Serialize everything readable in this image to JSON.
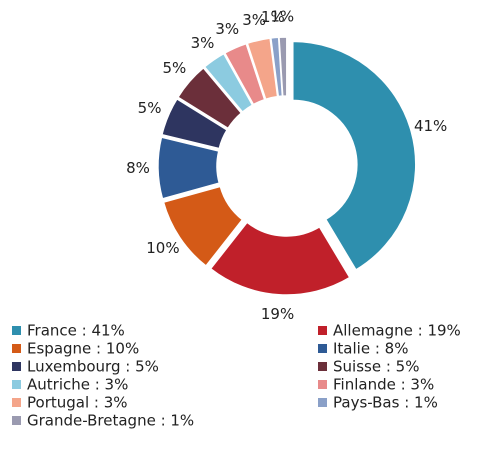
{
  "chart_data": {
    "type": "donut",
    "categories": [
      "France",
      "Allemagne",
      "Espagne",
      "Italie",
      "Luxembourg",
      "Suisse",
      "Autriche",
      "Finlande",
      "Portugal",
      "Pays-Bas",
      "Grande-Bretagne"
    ],
    "values": [
      41,
      19,
      10,
      8,
      5,
      5,
      3,
      3,
      3,
      1,
      1
    ],
    "value_labels": [
      "41%",
      "19%",
      "10%",
      "8%",
      "5%",
      "5%",
      "3%",
      "3%",
      "3%",
      "1%",
      "1%"
    ],
    "legend": [
      "France : 41%",
      "Allemagne : 19%",
      "Espagne : 10%",
      "Italie : 8%",
      "Luxembourg : 5%",
      "Suisse : 5%",
      "Autriche : 3%",
      "Finlande : 3%",
      "Portugal : 3%",
      "Pays-Bas : 1%",
      "Grande-Bretagne : 1%"
    ],
    "colors": [
      "#2e8fae",
      "#c0202a",
      "#d45a17",
      "#2e5a95",
      "#2e3560",
      "#6b2f3a",
      "#8ccbe0",
      "#e88a8a",
      "#f4a58a",
      "#8aa0c8",
      "#9a9ab0"
    ]
  }
}
